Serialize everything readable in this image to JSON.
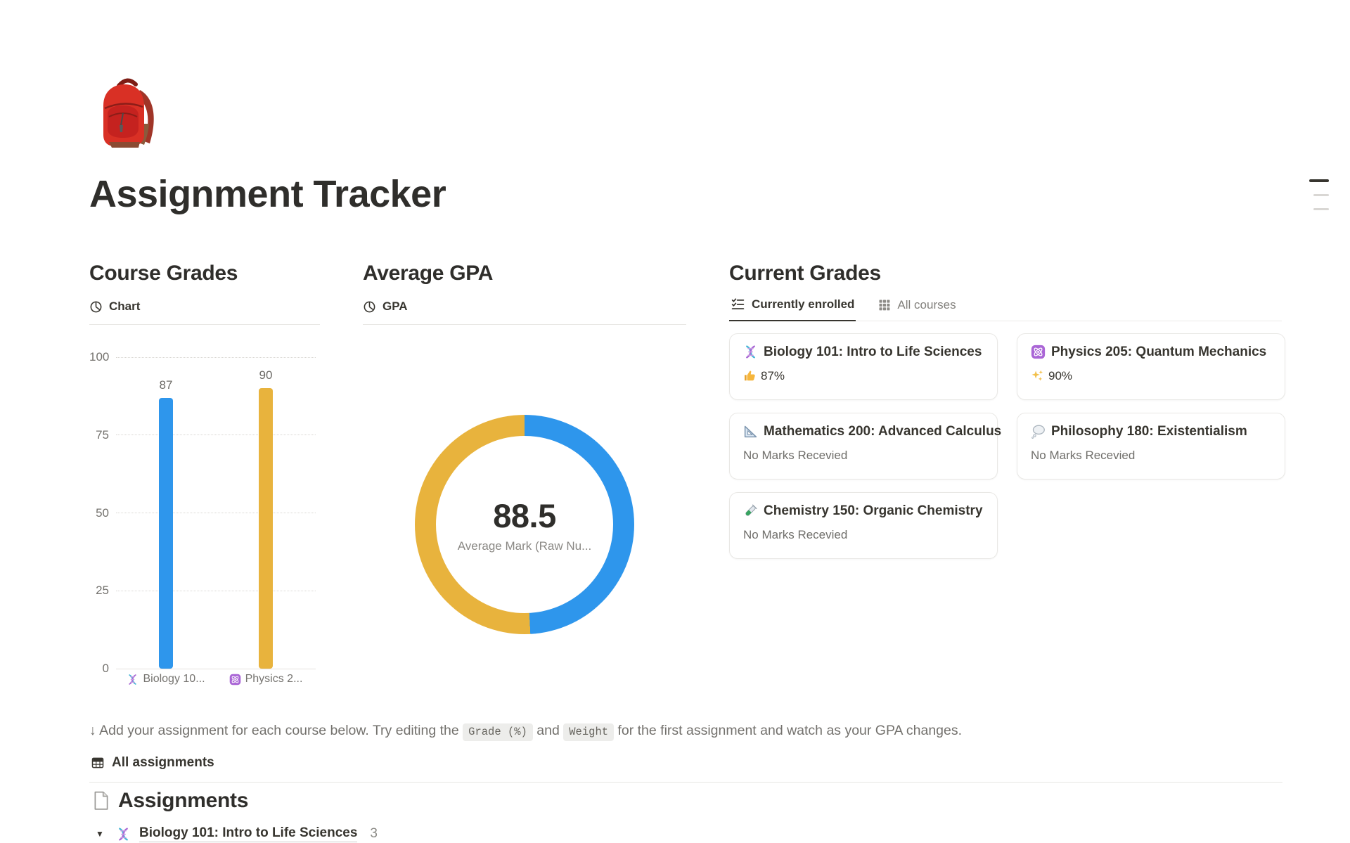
{
  "page": {
    "title": "Assignment Tracker",
    "icon": "backpack-emoji"
  },
  "toc_widget": {
    "icon": "table-of-contents-lines"
  },
  "course_grades": {
    "heading": "Course Grades",
    "view_label": "Chart",
    "view_icon": "pie-chart-icon",
    "chart_data": {
      "type": "bar",
      "categories": [
        "Biology 10...",
        "Physics 2..."
      ],
      "category_icons": [
        "dna-emoji",
        "atom-emoji"
      ],
      "values": [
        87,
        90
      ],
      "bar_colors": [
        "#2e96ec",
        "#e8b33d"
      ],
      "yticks": [
        "100",
        "75",
        "50",
        "25",
        "0"
      ],
      "ylim": [
        0,
        100
      ],
      "grid": "dotted horizontal"
    }
  },
  "average_gpa": {
    "heading": "Average GPA",
    "view_label": "GPA",
    "view_icon": "pie-chart-icon",
    "chart_data": {
      "type": "donut",
      "center_value": "88.5",
      "center_label": "Average Mark (Raw Nu...",
      "series": [
        {
          "name": "Biology 101: Intro to Life Sciences",
          "value": 87,
          "color": "#2e96ec"
        },
        {
          "name": "Physics 205: Quantum Mechanics",
          "value": 90,
          "color": "#e8b33d"
        }
      ]
    }
  },
  "current_grades": {
    "heading": "Current Grades",
    "tabs": [
      {
        "label": "Currently enrolled",
        "icon": "checklist-icon",
        "active": true
      },
      {
        "label": "All courses",
        "icon": "grid-icon",
        "active": false
      }
    ],
    "cards": [
      {
        "icon": "dna-emoji",
        "title": "Biology 101: Intro to Life Sciences",
        "status_icon": "thumbs-up-emoji",
        "status": "87%"
      },
      {
        "icon": "atom-emoji",
        "title": "Physics 205: Quantum Mechanics",
        "status_icon": "sparkles-emoji",
        "status": "90%"
      },
      {
        "icon": "triangular-ruler-emoji",
        "title": "Mathematics 200: Advanced Calculus",
        "status_icon": "",
        "status": "No Marks Recevied"
      },
      {
        "icon": "thought-balloon-emoji",
        "title": "Philosophy 180: Existentialism",
        "status_icon": "",
        "status": "No Marks Recevied"
      },
      {
        "icon": "test-tube-emoji",
        "title": "Chemistry 150: Organic Chemistry",
        "status_icon": "",
        "status": "No Marks Recevied"
      }
    ]
  },
  "instruction": {
    "prefix": "↓ Add your assignment for each course below. Try editing the ",
    "code1": "Grade (%)",
    "middle": " and ",
    "code2": "Weight",
    "suffix": " for the first assignment and watch as your GPA changes."
  },
  "all_assignments": {
    "label": "All assignments",
    "icon": "table-icon"
  },
  "assignments_section": {
    "heading": "Assignments",
    "icon": "page-emoji",
    "toggle_row": {
      "toggle_icon": "▼",
      "course_icon": "dna-emoji",
      "course_title": "Biology 101: Intro to Life Sciences",
      "count": "3"
    }
  }
}
